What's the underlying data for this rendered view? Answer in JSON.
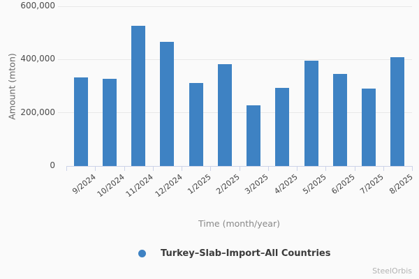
{
  "chart_data": {
    "type": "bar",
    "title": "",
    "categories": [
      "9/2024",
      "10/2024",
      "11/2024",
      "12/2024",
      "1/2025",
      "2/2025",
      "3/2025",
      "4/2025",
      "5/2025",
      "6/2025",
      "7/2025",
      "8/2025"
    ],
    "values": [
      334000,
      328000,
      526000,
      466000,
      313000,
      383000,
      229000,
      294000,
      396000,
      346000,
      290000,
      408000
    ],
    "series_name": "Turkey–Slab–Import–All Countries",
    "xlabel": "Time (month/year)",
    "ylabel": "Amount (mton)",
    "ylim": [
      0,
      600000
    ],
    "ytick_step": 200000,
    "ytick_labels": [
      "0",
      "200,000",
      "400,000",
      "600,000"
    ],
    "grid": true,
    "legend_position": "bottom",
    "bar_color": "#3e82c3"
  },
  "legend": {
    "label": "Turkey–Slab–Import–All Countries",
    "marker_color": "#3e82c3"
  },
  "watermark": "SteelOrbis",
  "colors": {
    "background": "#fafafa",
    "bar": "#3e82c3",
    "gridline": "#e8e8e8",
    "axis_line": "#ccd3e8",
    "ytick_text": "#4a4a4a",
    "xtick_text": "#444444",
    "axis_title": "#888888",
    "y_axis_title": "#666666",
    "legend_text": "#3a3a3a",
    "watermark_text": "#b3b3b3"
  }
}
